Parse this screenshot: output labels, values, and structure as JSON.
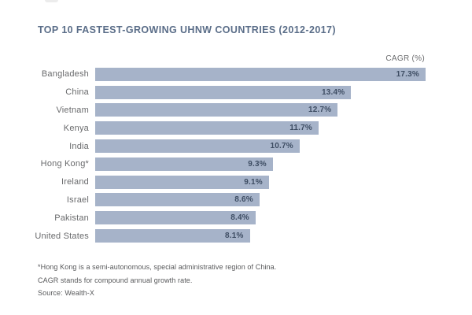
{
  "title": "TOP 10 FASTEST-GROWING UHNW COUNTRIES (2012-2017)",
  "footnotes": [
    "*Hong Kong is a semi-autonomous, special administrative region of China.",
    "CAGR stands for compound annual growth rate.",
    "Source: Wealth-X"
  ],
  "colors": {
    "title": "#5a6d88",
    "bar": "#a6b3c9",
    "bar_value_text": "#3e4d63",
    "category_label": "#696a6c",
    "axis_header_text": "#6b6c6e",
    "footnote_text": "#57585a",
    "background": "#ffffff"
  },
  "chart_data": {
    "type": "bar",
    "orientation": "horizontal",
    "title": "TOP 10 FASTEST-GROWING UHNW COUNTRIES (2012-2017)",
    "value_label": "CAGR (%)",
    "categories": [
      "Bangladesh",
      "China",
      "Vietnam",
      "Kenya",
      "India",
      "Hong Kong*",
      "Ireland",
      "Israel",
      "Pakistan",
      "United States"
    ],
    "values": [
      17.3,
      13.4,
      12.7,
      11.7,
      10.7,
      9.3,
      9.1,
      8.6,
      8.4,
      8.1
    ],
    "value_suffix": "%",
    "xlim": [
      0,
      17.3
    ],
    "grid": false,
    "legend": false,
    "value_labels_inside_bars": true,
    "source": "Wealth-X"
  }
}
